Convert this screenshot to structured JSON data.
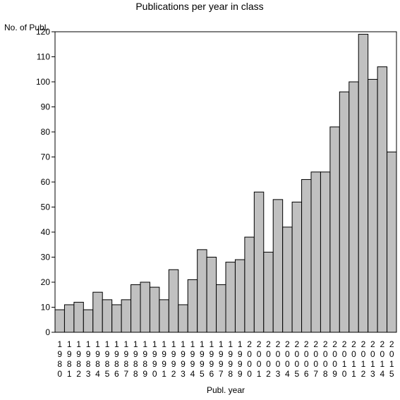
{
  "chart_data": {
    "type": "bar",
    "title": "Publications per year in class",
    "ylabel": "No. of Publ.",
    "xlabel": "Publ. year",
    "ylim": [
      0,
      120
    ],
    "yticks": [
      0,
      10,
      20,
      30,
      40,
      50,
      60,
      70,
      80,
      90,
      100,
      110,
      120
    ],
    "categories": [
      "1980",
      "1981",
      "1982",
      "1983",
      "1984",
      "1985",
      "1986",
      "1987",
      "1988",
      "1989",
      "1990",
      "1991",
      "1992",
      "1993",
      "1994",
      "1995",
      "1996",
      "1997",
      "1998",
      "1999",
      "2000",
      "2001",
      "2002",
      "2003",
      "2004",
      "2005",
      "2006",
      "2007",
      "2008",
      "2009",
      "2010",
      "2011",
      "2012",
      "2013",
      "2014",
      "2015"
    ],
    "values": [
      9,
      11,
      12,
      9,
      16,
      13,
      11,
      13,
      19,
      20,
      18,
      13,
      25,
      11,
      21,
      33,
      30,
      19,
      28,
      29,
      38,
      56,
      32,
      53,
      42,
      52,
      61,
      64,
      64,
      82,
      96,
      100,
      119,
      101,
      106,
      72
    ],
    "bar_color": "#c0c0c0",
    "grid": false
  }
}
